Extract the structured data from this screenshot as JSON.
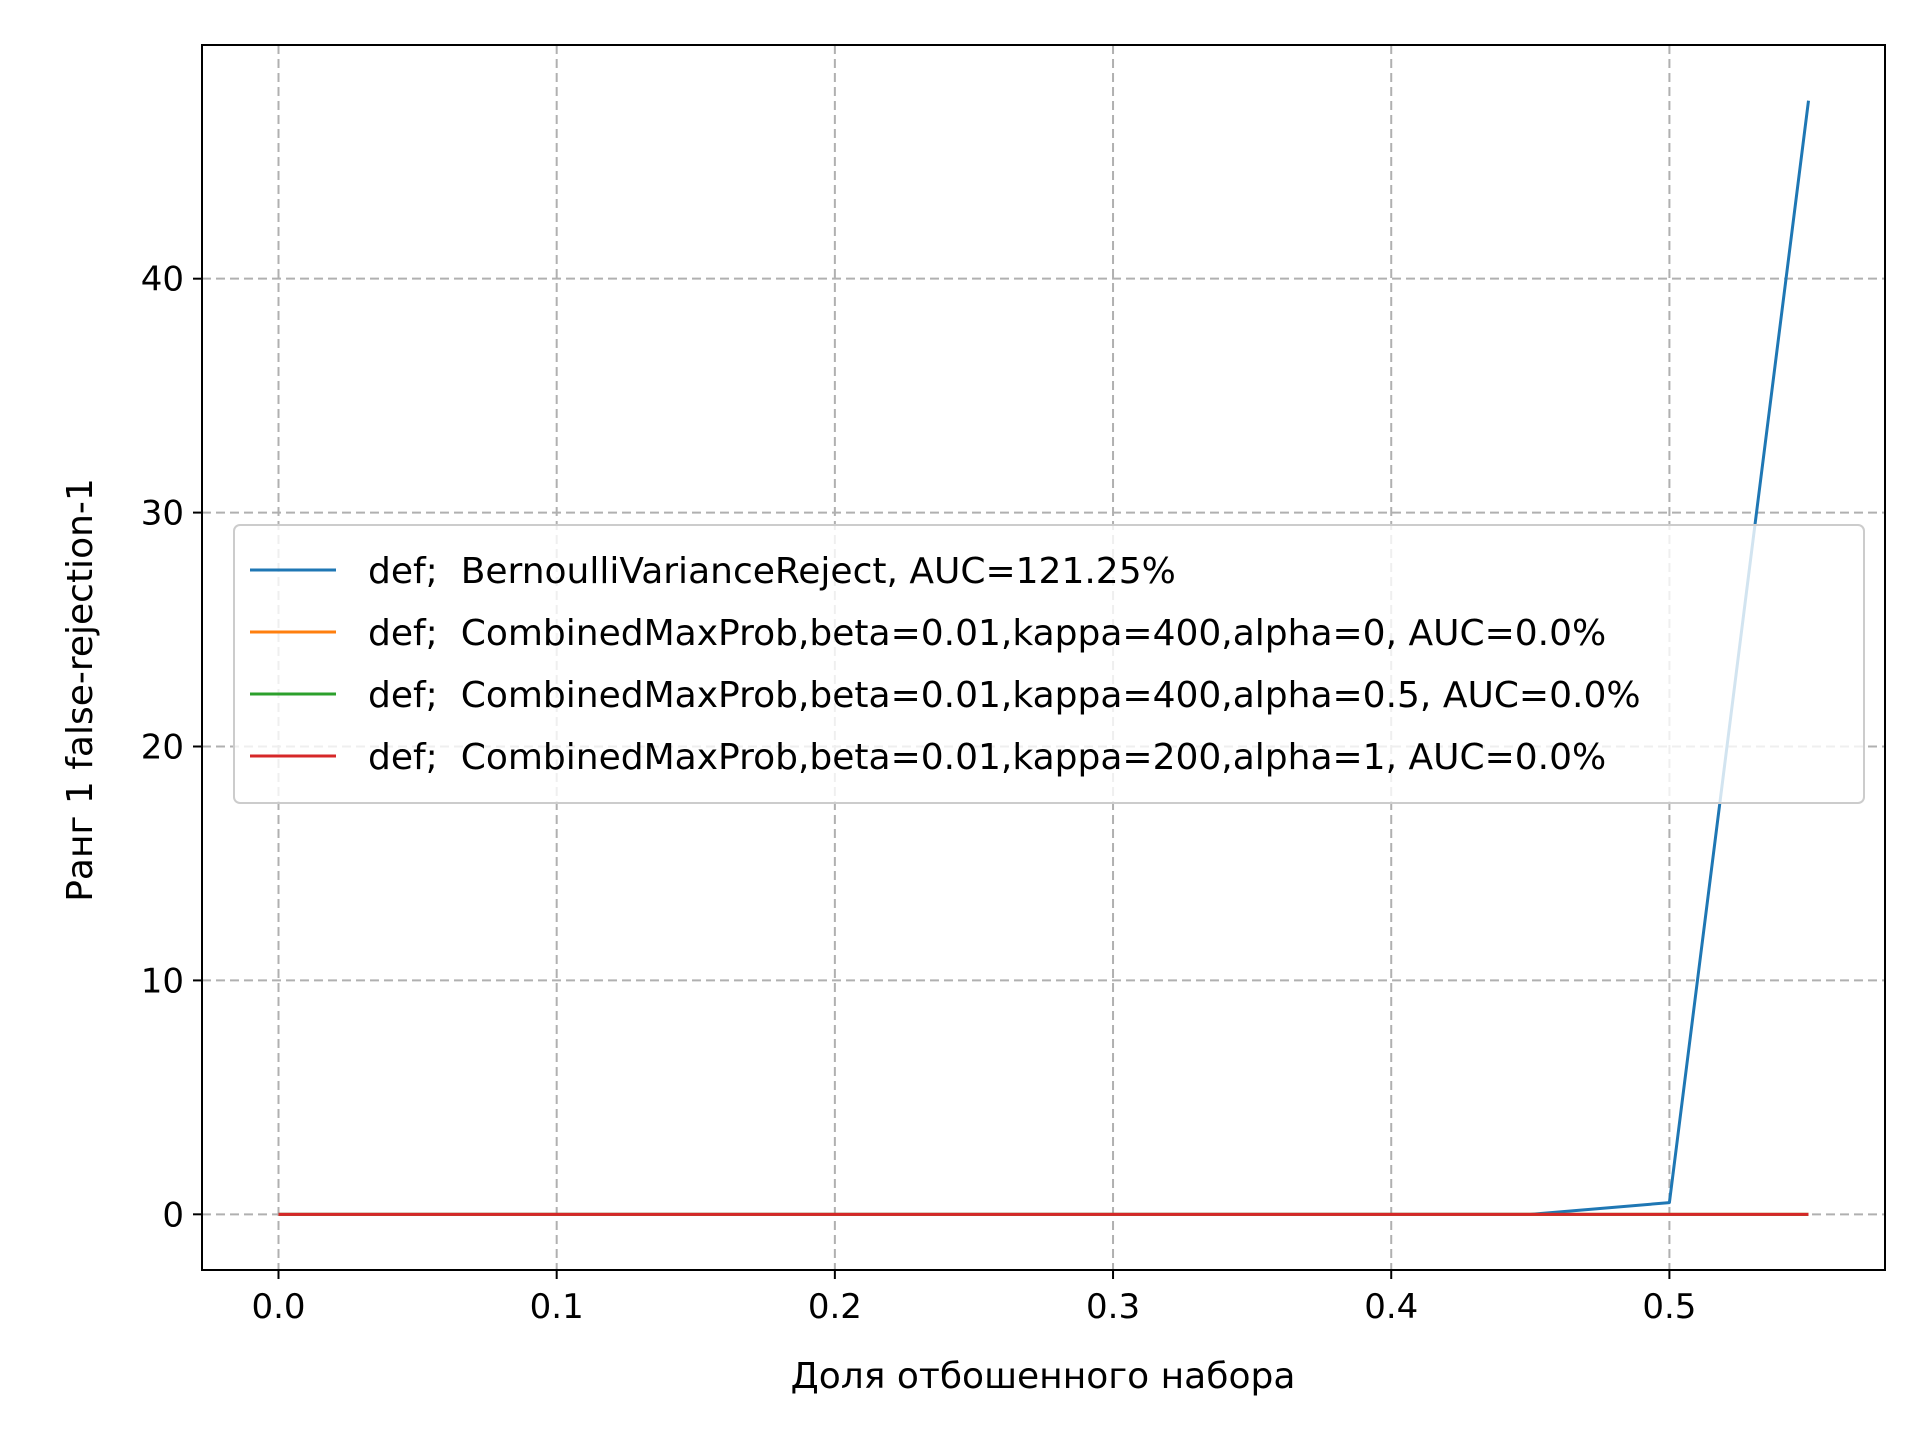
{
  "chart_data": {
    "type": "line",
    "title": "",
    "xlabel": "Доля отбошенного набора",
    "ylabel": "Ранг 1 false-rejection-1",
    "xlim": [
      -0.0275,
      0.5775
    ],
    "ylim": [
      -2.3805,
      49.9905
    ],
    "xticks": [
      0.0,
      0.1,
      0.2,
      0.3,
      0.4,
      0.5
    ],
    "xtick_labels": [
      "0.0",
      "0.1",
      "0.2",
      "0.3",
      "0.4",
      "0.5"
    ],
    "yticks": [
      0,
      10,
      20,
      30,
      40
    ],
    "ytick_labels": [
      "0",
      "10",
      "20",
      "30",
      "40"
    ],
    "grid": true,
    "grid_style": "dashed",
    "legend_position": "center-right",
    "x": [
      0.0,
      0.05,
      0.1,
      0.15,
      0.2,
      0.25,
      0.3,
      0.35,
      0.4,
      0.45,
      0.5,
      0.55
    ],
    "series": [
      {
        "name": "def;  BernoulliVarianceReject, AUC=121.25%",
        "color": "#1f77b4",
        "values": [
          0,
          0,
          0,
          0,
          0,
          0,
          0,
          0,
          0,
          0,
          0.5,
          47.61
        ]
      },
      {
        "name": "def;  CombinedMaxProb,beta=0.01,kappa=400,alpha=0, AUC=0.0%",
        "color": "#ff7f0e",
        "values": [
          0,
          0,
          0,
          0,
          0,
          0,
          0,
          0,
          0,
          0,
          0,
          0
        ]
      },
      {
        "name": "def;  CombinedMaxProb,beta=0.01,kappa=400,alpha=0.5, AUC=0.0%",
        "color": "#2ca02c",
        "values": [
          0,
          0,
          0,
          0,
          0,
          0,
          0,
          0,
          0,
          0,
          0,
          0
        ]
      },
      {
        "name": "def;  CombinedMaxProb,beta=0.01,kappa=200,alpha=1, AUC=0.0%",
        "color": "#d62728",
        "values": [
          0,
          0,
          0,
          0,
          0,
          0,
          0,
          0,
          0,
          0,
          0,
          0
        ]
      }
    ]
  }
}
